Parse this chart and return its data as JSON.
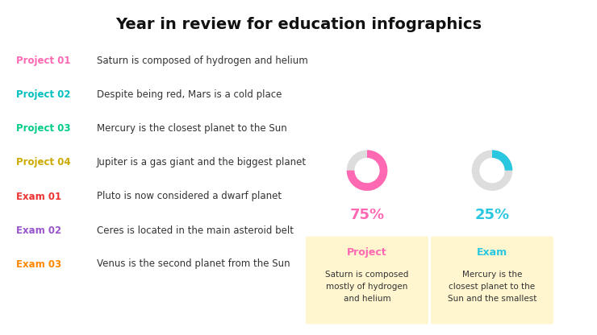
{
  "title": "Year in review for education infographics",
  "title_fontsize": 14,
  "bg_color": "#ffffff",
  "left_items": [
    {
      "label": "Project 01",
      "label_color": "#FF69B4",
      "text": "Saturn is composed of hydrogen and helium"
    },
    {
      "label": "Project 02",
      "label_color": "#00BFBF",
      "text": "Despite being red, Mars is a cold place"
    },
    {
      "label": "Project 03",
      "label_color": "#00CC88",
      "text": "Mercury is the closest planet to the Sun"
    },
    {
      "label": "Project 04",
      "label_color": "#CCAA00",
      "text": "Jupiter is a gas giant and the biggest planet"
    },
    {
      "label": "Exam 01",
      "label_color": "#EE3333",
      "text": "Pluto is now considered a dwarf planet"
    },
    {
      "label": "Exam 02",
      "label_color": "#9955CC",
      "text": "Ceres is located in the main asteroid belt"
    },
    {
      "label": "Exam 03",
      "label_color": "#FF8800",
      "text": "Venus is the second planet from the Sun"
    }
  ],
  "donut1": {
    "value": 75,
    "color": "#FF69B4",
    "bg_color": "#DDDDDD",
    "label": "75%",
    "label_color": "#FF69B4"
  },
  "donut2": {
    "value": 25,
    "color": "#29C8E0",
    "bg_color": "#DDDDDD",
    "label": "25%",
    "label_color": "#29C8E0"
  },
  "box1": {
    "title": "Project",
    "title_color": "#FF69B4",
    "text": "Saturn is composed\nmostly of hydrogen\nand helium",
    "bg_color": "#FFF6D0"
  },
  "box2": {
    "title": "Exam",
    "title_color": "#29C8E0",
    "text": "Mercury is the\nclosest planet to the\nSun and the smallest",
    "bg_color": "#FFF6D0"
  }
}
